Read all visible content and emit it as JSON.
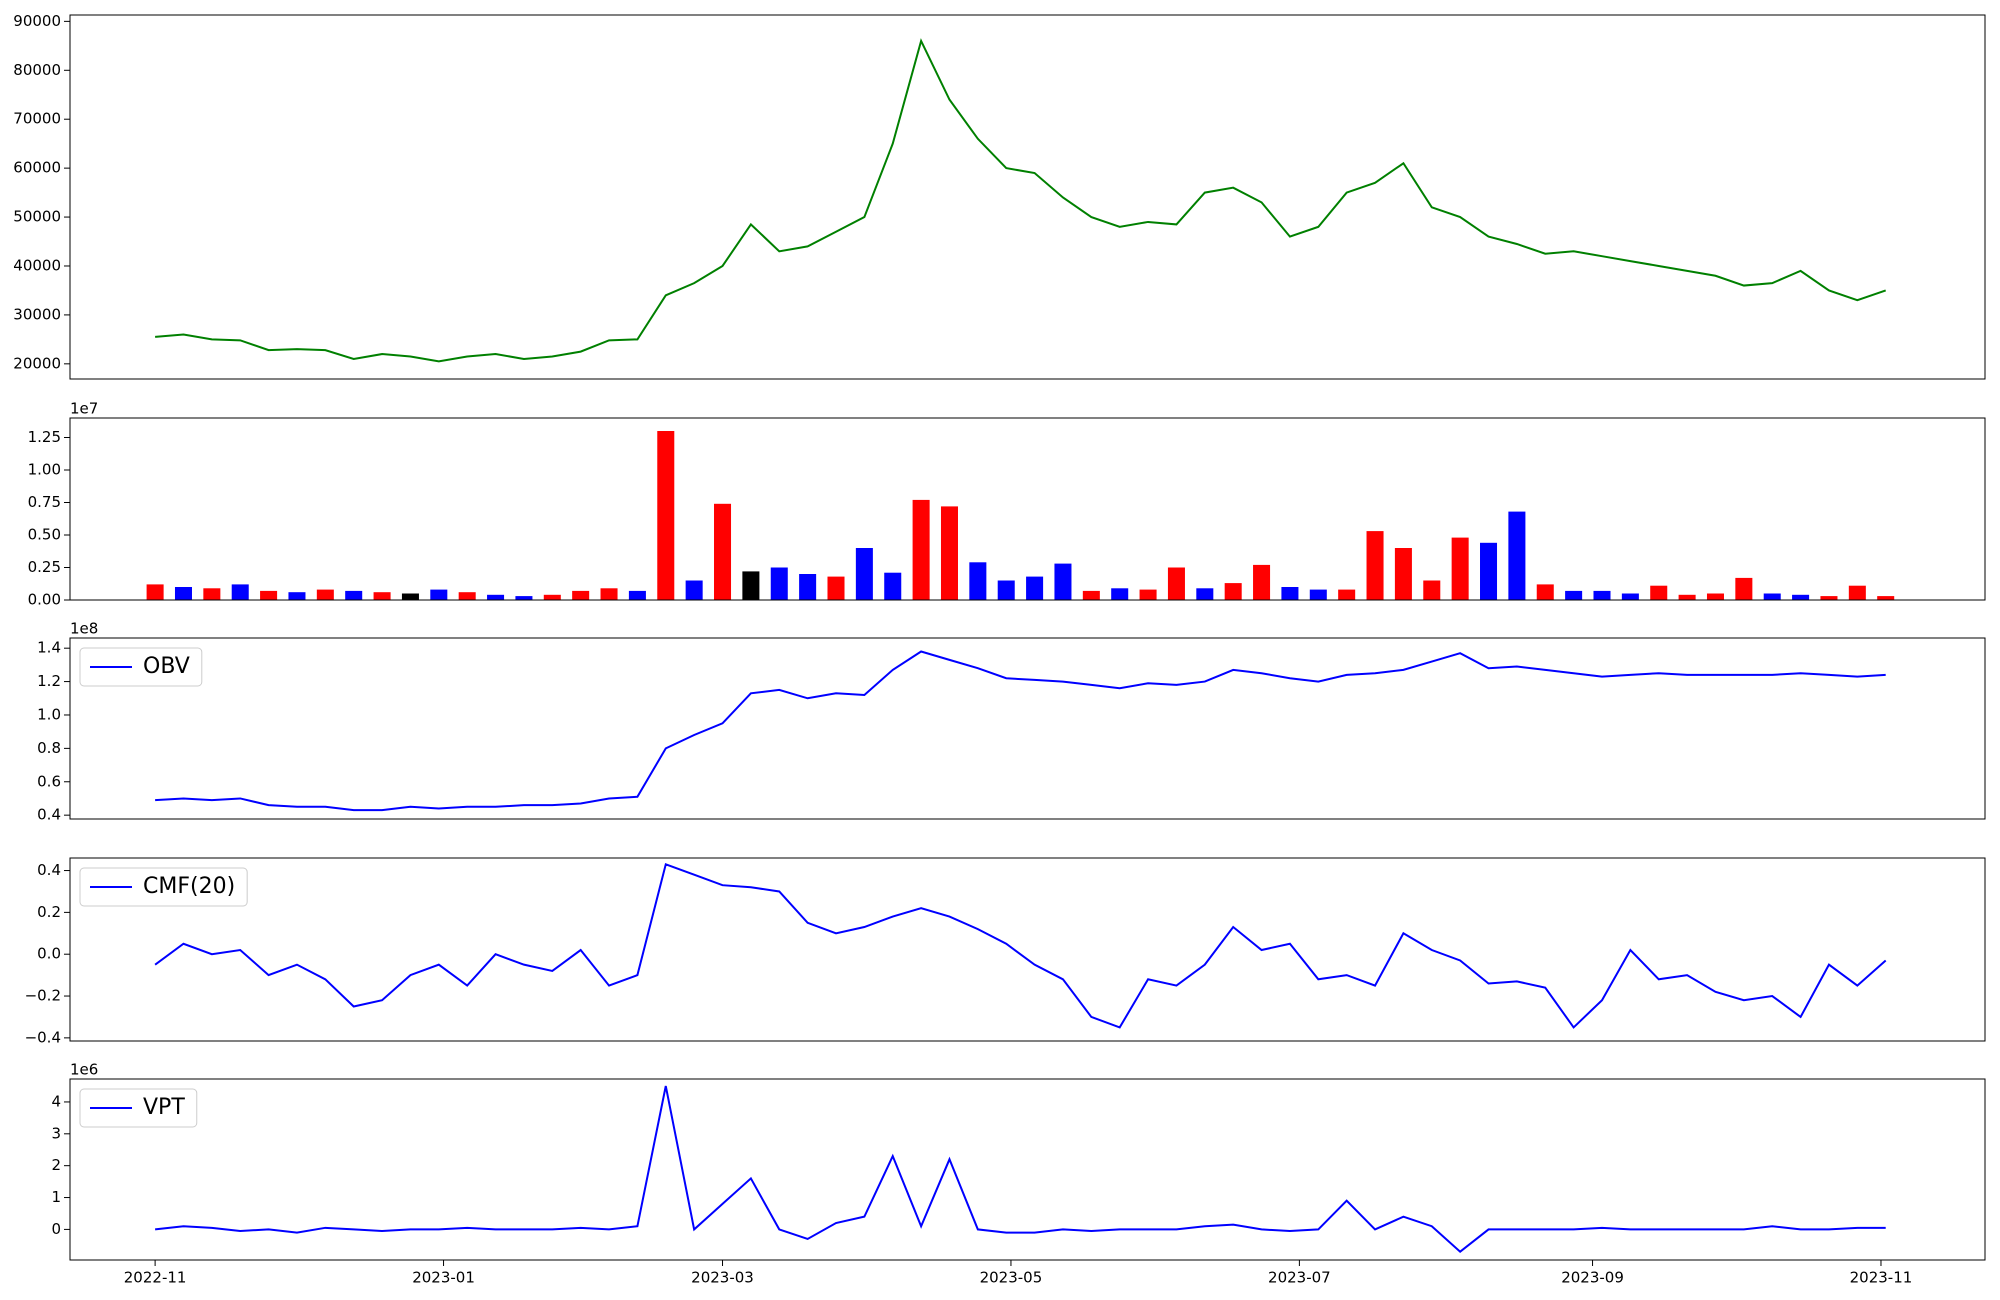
{
  "chart_data": [
    {
      "type": "line",
      "color": "green",
      "x": [
        0,
        6,
        12,
        18,
        24,
        30,
        36,
        42,
        48,
        54,
        60,
        66,
        72,
        78,
        84,
        90,
        96,
        102,
        108,
        114,
        120,
        126,
        132,
        138,
        144,
        150,
        156,
        162,
        168,
        174,
        180,
        186,
        192,
        198,
        204,
        210,
        216,
        222,
        228,
        234,
        240,
        246,
        252,
        258,
        264,
        270,
        276,
        282,
        288,
        294,
        300,
        306,
        312,
        318,
        324,
        330,
        336,
        342,
        348,
        354,
        360,
        366
      ],
      "values": [
        25500,
        26000,
        25000,
        24800,
        22800,
        23000,
        22800,
        21000,
        22000,
        21500,
        20500,
        21500,
        22000,
        21000,
        21500,
        22500,
        24800,
        25000,
        34000,
        36500,
        40000,
        48500,
        43000,
        44000,
        47000,
        50000,
        65000,
        86000,
        74000,
        66000,
        60000,
        59000,
        54000,
        50000,
        48000,
        49000,
        48500,
        55000,
        56000,
        53000,
        46000,
        48000,
        55000,
        57000,
        61000,
        52000,
        50000,
        46000,
        44500,
        42500,
        43000,
        42000,
        41000,
        40000,
        39000,
        38000,
        36000,
        36500,
        39000,
        35000,
        33000,
        35000
      ],
      "xlim": [
        -18,
        387
      ],
      "ylim": [
        16900,
        91300
      ],
      "yticks": [
        20000,
        30000,
        40000,
        50000,
        60000,
        70000,
        80000,
        90000
      ]
    },
    {
      "type": "bar",
      "offset_label": "1e7",
      "x": [
        0,
        6,
        12,
        18,
        24,
        30,
        36,
        42,
        48,
        54,
        60,
        66,
        72,
        78,
        84,
        90,
        96,
        102,
        108,
        114,
        120,
        126,
        132,
        138,
        144,
        150,
        156,
        162,
        168,
        174,
        180,
        186,
        192,
        198,
        204,
        210,
        216,
        222,
        228,
        234,
        240,
        246,
        252,
        258,
        264,
        270,
        276,
        282,
        288,
        294,
        300,
        306,
        312,
        318,
        324,
        330,
        336,
        342,
        348,
        354,
        360,
        366
      ],
      "values": [
        1200000,
        1000000,
        900000,
        1200000,
        700000,
        600000,
        800000,
        700000,
        600000,
        500000,
        800000,
        600000,
        400000,
        300000,
        400000,
        700000,
        900000,
        700000,
        13000000,
        1500000,
        7400000,
        2200000,
        2500000,
        2000000,
        1800000,
        4000000,
        2100000,
        7700000,
        7200000,
        2900000,
        1500000,
        1800000,
        2800000,
        700000,
        900000,
        800000,
        2500000,
        900000,
        1300000,
        2700000,
        1000000,
        800000,
        800000,
        5300000,
        4000000,
        1500000,
        4800000,
        4400000,
        6800000,
        1200000,
        700000,
        700000,
        500000,
        1100000,
        400000,
        500000,
        1700000,
        500000,
        400000,
        300000,
        1100000,
        300000
      ],
      "colors": [
        "red",
        "blue",
        "red",
        "blue",
        "red",
        "blue",
        "red",
        "blue",
        "red",
        "black",
        "blue",
        "red",
        "blue",
        "blue",
        "red",
        "red",
        "red",
        "blue",
        "red",
        "blue",
        "red",
        "black",
        "blue",
        "blue",
        "red",
        "blue",
        "blue",
        "red",
        "red",
        "blue",
        "blue",
        "blue",
        "blue",
        "red",
        "blue",
        "red",
        "red",
        "blue",
        "red",
        "red",
        "blue",
        "blue",
        "red",
        "red",
        "red",
        "red",
        "red",
        "blue",
        "blue",
        "red",
        "blue",
        "blue",
        "blue",
        "red",
        "red",
        "red",
        "red",
        "blue",
        "blue",
        "red",
        "red",
        "red"
      ],
      "xlim": [
        -18,
        387
      ],
      "ylim": [
        0,
        14000000
      ],
      "yticks": [
        {
          "value": 0,
          "label": "0.00"
        },
        {
          "value": 2500000,
          "label": "0.25"
        },
        {
          "value": 5000000,
          "label": "0.50"
        },
        {
          "value": 7500000,
          "label": "0.75"
        },
        {
          "value": 10000000,
          "label": "1.00"
        },
        {
          "value": 12500000,
          "label": "1.25"
        }
      ]
    },
    {
      "type": "line",
      "offset_label": "1e8",
      "legend": "upper left",
      "x": [
        0,
        6,
        12,
        18,
        24,
        30,
        36,
        42,
        48,
        54,
        60,
        66,
        72,
        78,
        84,
        90,
        96,
        102,
        108,
        114,
        120,
        126,
        132,
        138,
        144,
        150,
        156,
        162,
        168,
        174,
        180,
        186,
        192,
        198,
        204,
        210,
        216,
        222,
        228,
        234,
        240,
        246,
        252,
        258,
        264,
        270,
        276,
        282,
        288,
        294,
        300,
        306,
        312,
        318,
        324,
        330,
        336,
        342,
        348,
        354,
        360,
        366
      ],
      "series": [
        {
          "name": "OBV",
          "color": "blue",
          "values": [
            49000000,
            50000000,
            49000000,
            50000000,
            46000000,
            45000000,
            45000000,
            43000000,
            43000000,
            45000000,
            44000000,
            45000000,
            45000000,
            46000000,
            46000000,
            47000000,
            50000000,
            51000000,
            80000000,
            88000000,
            95000000,
            113000000,
            115000000,
            110000000,
            113000000,
            112000000,
            127000000,
            138000000,
            133000000,
            128000000,
            122000000,
            121000000,
            120000000,
            118000000,
            116000000,
            119000000,
            118000000,
            120000000,
            127000000,
            125000000,
            122000000,
            120000000,
            124000000,
            125000000,
            127000000,
            132000000,
            137000000,
            128000000,
            129000000,
            127000000,
            125000000,
            123000000,
            124000000,
            125000000,
            124000000,
            124000000,
            124000000,
            124000000,
            125000000,
            124000000,
            123000000,
            124000000
          ]
        }
      ],
      "xlim": [
        -18,
        387
      ],
      "ylim": [
        37700000,
        146100000
      ],
      "yticks": [
        {
          "value": 40000000,
          "label": "0.4"
        },
        {
          "value": 60000000,
          "label": "0.6"
        },
        {
          "value": 80000000,
          "label": "0.8"
        },
        {
          "value": 100000000,
          "label": "1.0"
        },
        {
          "value": 120000000,
          "label": "1.2"
        },
        {
          "value": 140000000,
          "label": "1.4"
        }
      ]
    },
    {
      "type": "line",
      "legend": "upper left",
      "x": [
        0,
        6,
        12,
        18,
        24,
        30,
        36,
        42,
        48,
        54,
        60,
        66,
        72,
        78,
        84,
        90,
        96,
        102,
        108,
        114,
        120,
        126,
        132,
        138,
        144,
        150,
        156,
        162,
        168,
        174,
        180,
        186,
        192,
        198,
        204,
        210,
        216,
        222,
        228,
        234,
        240,
        246,
        252,
        258,
        264,
        270,
        276,
        282,
        288,
        294,
        300,
        306,
        312,
        318,
        324,
        330,
        336,
        342,
        348,
        354,
        360,
        366
      ],
      "series": [
        {
          "name": "CMF(20)",
          "color": "blue",
          "values": [
            -0.05,
            0.05,
            0,
            0.02,
            -0.1,
            -0.05,
            -0.12,
            -0.25,
            -0.22,
            -0.1,
            -0.05,
            -0.15,
            0,
            -0.05,
            -0.08,
            0.02,
            -0.15,
            -0.1,
            0.43,
            0.38,
            0.33,
            0.32,
            0.3,
            0.15,
            0.1,
            0.13,
            0.18,
            0.22,
            0.18,
            0.12,
            0.05,
            -0.05,
            -0.12,
            -0.3,
            -0.35,
            -0.12,
            -0.15,
            -0.05,
            0.13,
            0.02,
            0.05,
            -0.12,
            -0.1,
            -0.15,
            0.1,
            0.02,
            -0.03,
            -0.14,
            -0.13,
            -0.16,
            -0.35,
            -0.22,
            0.02,
            -0.12,
            -0.1,
            -0.18,
            -0.22,
            -0.2,
            -0.3,
            -0.05,
            -0.15,
            -0.03
          ]
        }
      ],
      "xlim": [
        -18,
        387
      ],
      "ylim": [
        -0.415,
        0.46
      ],
      "yticks": [
        {
          "value": -0.4,
          "label": "−0.4"
        },
        {
          "value": -0.2,
          "label": "−0.2"
        },
        {
          "value": 0,
          "label": "0.0"
        },
        0.2,
        0.4
      ]
    },
    {
      "type": "line",
      "offset_label": "1e6",
      "legend": "upper left",
      "x": [
        0,
        6,
        12,
        18,
        24,
        30,
        36,
        42,
        48,
        54,
        60,
        66,
        72,
        78,
        84,
        90,
        96,
        102,
        108,
        114,
        120,
        126,
        132,
        138,
        144,
        150,
        156,
        162,
        168,
        174,
        180,
        186,
        192,
        198,
        204,
        210,
        216,
        222,
        228,
        234,
        240,
        246,
        252,
        258,
        264,
        270,
        276,
        282,
        288,
        294,
        300,
        306,
        312,
        318,
        324,
        330,
        336,
        342,
        348,
        354,
        360,
        366
      ],
      "series": [
        {
          "name": "VPT",
          "color": "blue",
          "values": [
            0,
            100000,
            50000,
            -50000,
            0,
            -100000,
            50000,
            0,
            -50000,
            0,
            0,
            50000,
            0,
            0,
            0,
            50000,
            0,
            100000,
            4500000,
            0,
            800000,
            1600000,
            0,
            -300000,
            200000,
            400000,
            2300000,
            100000,
            2200000,
            0,
            -100000,
            -100000,
            0,
            -50000,
            0,
            0,
            0,
            100000,
            150000,
            0,
            -50000,
            0,
            900000,
            0,
            400000,
            100000,
            -700000,
            0,
            0,
            0,
            0,
            50000,
            0,
            0,
            0,
            0,
            0,
            100000,
            0,
            0,
            50000,
            50000
          ]
        }
      ],
      "xlim": [
        -18,
        387
      ],
      "ylim": [
        -960000,
        4720000
      ],
      "yticks": [
        0,
        {
          "value": 1000000,
          "label": "1"
        },
        {
          "value": 2000000,
          "label": "2"
        },
        {
          "value": 3000000,
          "label": "3"
        },
        {
          "value": 4000000,
          "label": "4"
        }
      ],
      "xticks": [
        {
          "value": 0,
          "label": "2022-11"
        },
        {
          "value": 61,
          "label": "2023-01"
        },
        {
          "value": 120,
          "label": "2023-03"
        },
        {
          "value": 181,
          "label": "2023-05"
        },
        {
          "value": 242,
          "label": "2023-07"
        },
        {
          "value": 304,
          "label": "2023-09"
        },
        {
          "value": 365,
          "label": "2023-11"
        }
      ]
    }
  ]
}
